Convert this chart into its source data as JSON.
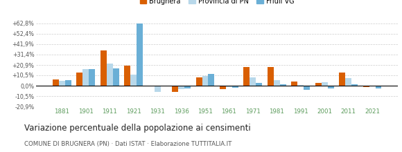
{
  "years": [
    1881,
    1901,
    1911,
    1921,
    1931,
    1936,
    1951,
    1961,
    1971,
    1981,
    1991,
    2001,
    2011,
    2021
  ],
  "brugnera": [
    6.5,
    13.5,
    35.5,
    20.5,
    -1.0,
    -6.5,
    8.5,
    -3.5,
    18.5,
    18.5,
    4.5,
    2.5,
    13.5,
    -1.5
  ],
  "provincia_pn": [
    5.0,
    16.5,
    22.5,
    11.0,
    -6.5,
    -3.5,
    9.5,
    -1.5,
    8.5,
    5.5,
    0.5,
    3.5,
    7.5,
    -1.0
  ],
  "friuli_vg": [
    5.5,
    16.5,
    17.5,
    62.5,
    0.0,
    -3.0,
    12.0,
    -2.0,
    3.0,
    1.5,
    -4.5,
    -2.5,
    1.5,
    -2.5
  ],
  "color_brugnera": "#d95f02",
  "color_provincia": "#b8d8ea",
  "color_friuli": "#6aafd6",
  "ylim_min": -20.9,
  "ylim_max": 68.0,
  "yticks": [
    -20.9,
    -10.5,
    0.0,
    10.5,
    20.9,
    31.4,
    41.9,
    52.4,
    62.8
  ],
  "ytick_labels": [
    "-20,9%",
    "-10,5%",
    "0,0%",
    "+10,5%",
    "+20,9%",
    "+31,4%",
    "+41,9%",
    "+52,4%",
    "+62,8%"
  ],
  "title": "Variazione percentuale della popolazione ai censimenti",
  "subtitle": "COMUNE DI BRUGNERA (PN) · Dati ISTAT · Elaborazione TUTTITALIA.IT",
  "legend_labels": [
    "Brugnera",
    "Provincia di PN",
    "Friuli VG"
  ],
  "background_color": "#ffffff",
  "grid_color": "#cccccc",
  "xticklabel_color": "#5a9a5a",
  "title_color": "#222222",
  "subtitle_color": "#555555"
}
